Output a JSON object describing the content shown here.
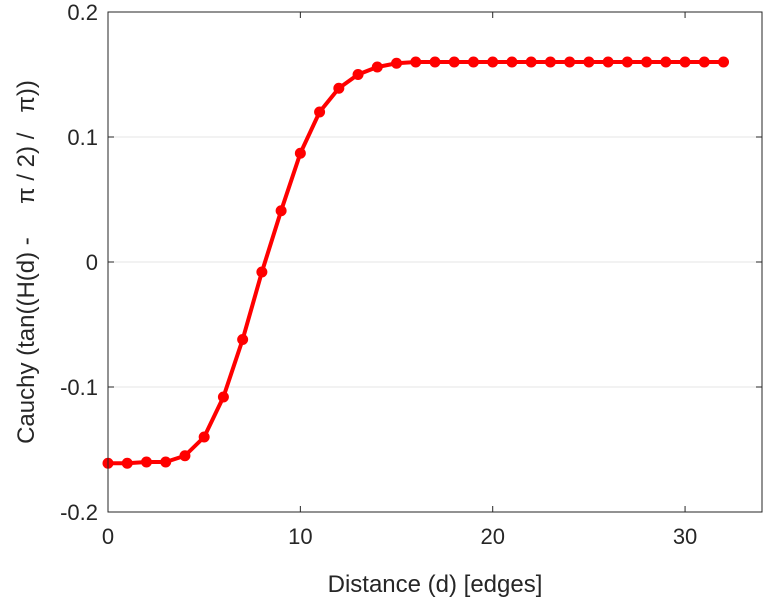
{
  "chart_data": {
    "type": "line",
    "title": "",
    "xlabel": "Distance (d) [edges]",
    "ylabel": "Cauchy (tan((H(d) -     π / 2) /   π))",
    "xlim": [
      0,
      34
    ],
    "ylim": [
      -0.2,
      0.2
    ],
    "xticks": [
      0,
      10,
      20,
      30
    ],
    "xtick_labels": [
      "0",
      "10",
      "20",
      "30"
    ],
    "yticks": [
      -0.2,
      -0.1,
      0,
      0.1,
      0.2
    ],
    "ytick_labels": [
      "-0.2",
      "-0.1",
      "0",
      "0.1",
      "0.2"
    ],
    "grid": "horizontal",
    "legend": "none",
    "series": [
      {
        "color": "#ff0000",
        "marker": "circle",
        "x": [
          0,
          1,
          2,
          3,
          4,
          5,
          6,
          7,
          8,
          9,
          10,
          11,
          12,
          13,
          14,
          15,
          16,
          17,
          18,
          19,
          20,
          21,
          22,
          23,
          24,
          25,
          26,
          27,
          28,
          29,
          30,
          31,
          32
        ],
        "y": [
          -0.161,
          -0.161,
          -0.16,
          -0.16,
          -0.155,
          -0.14,
          -0.108,
          -0.062,
          -0.008,
          0.041,
          0.087,
          0.12,
          0.139,
          0.15,
          0.156,
          0.159,
          0.16,
          0.16,
          0.16,
          0.16,
          0.16,
          0.16,
          0.16,
          0.16,
          0.16,
          0.16,
          0.16,
          0.16,
          0.16,
          0.16,
          0.16,
          0.16,
          0.16
        ]
      }
    ]
  }
}
